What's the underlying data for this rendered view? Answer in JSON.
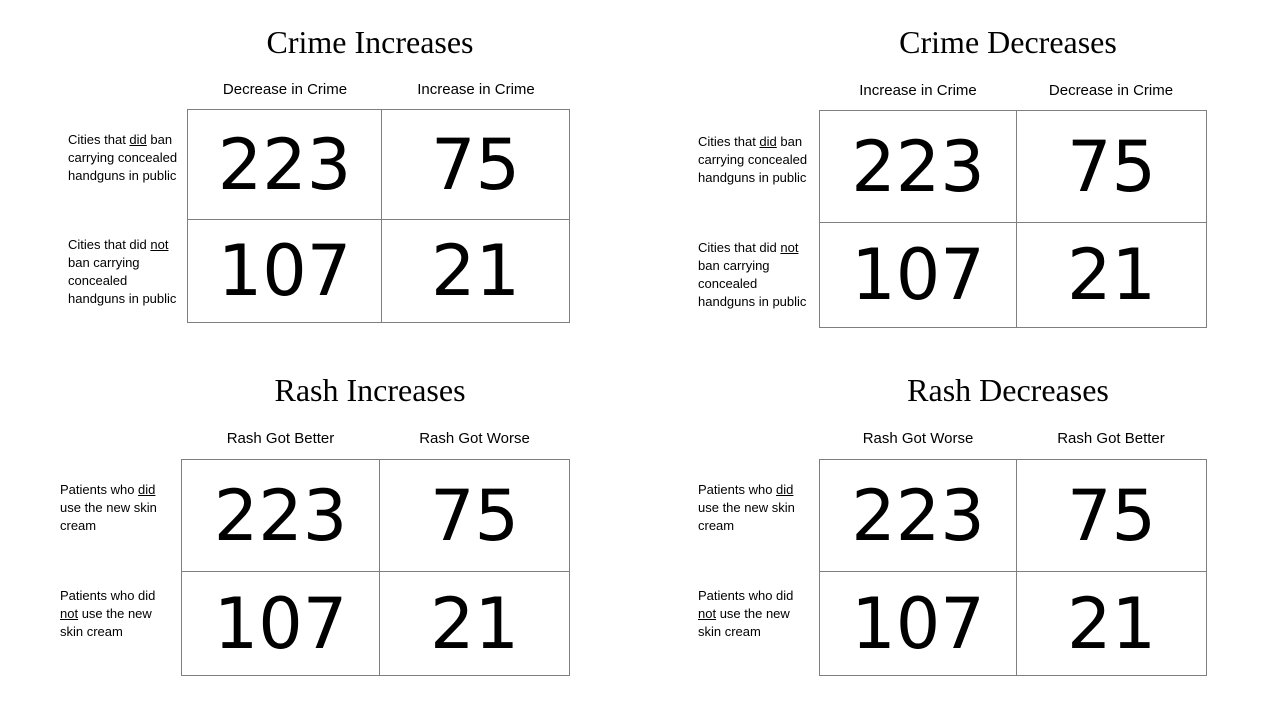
{
  "panels": [
    {
      "title": "Crime Increases",
      "col_headers": [
        "Decrease in Crime",
        "Increase in Crime"
      ],
      "rows": [
        {
          "label_before": "Cities that ",
          "label_emph": "did",
          "label_after": " ban carrying concealed handguns in public"
        },
        {
          "label_before": "Cities that did ",
          "label_emph": "not",
          "label_after": " ban carrying concealed handguns in public"
        }
      ],
      "cells": [
        [
          "223",
          "75"
        ],
        [
          "107",
          "21"
        ]
      ]
    },
    {
      "title": "Crime Decreases",
      "col_headers": [
        "Increase in Crime",
        "Decrease in Crime"
      ],
      "rows": [
        {
          "label_before": "Cities that ",
          "label_emph": "did",
          "label_after": " ban carrying concealed handguns in public"
        },
        {
          "label_before": "Cities that did ",
          "label_emph": "not",
          "label_after": " ban carrying concealed handguns in public"
        }
      ],
      "cells": [
        [
          "223",
          "75"
        ],
        [
          "107",
          "21"
        ]
      ]
    },
    {
      "title": "Rash Increases",
      "col_headers": [
        "Rash Got Better",
        "Rash Got Worse"
      ],
      "rows": [
        {
          "label_before": "Patients who ",
          "label_emph": "did",
          "label_after": " use the new skin cream"
        },
        {
          "label_before": "Patients who did ",
          "label_emph": "not",
          "label_after": " use the new skin cream"
        }
      ],
      "cells": [
        [
          "223",
          "75"
        ],
        [
          "107",
          "21"
        ]
      ]
    },
    {
      "title": "Rash Decreases",
      "col_headers": [
        "Rash Got Worse",
        "Rash Got Better"
      ],
      "rows": [
        {
          "label_before": "Patients who ",
          "label_emph": "did",
          "label_after": " use the new skin cream"
        },
        {
          "label_before": "Patients who did ",
          "label_emph": "not",
          "label_after": " use the new skin cream"
        }
      ],
      "cells": [
        [
          "223",
          "75"
        ],
        [
          "107",
          "21"
        ]
      ]
    }
  ]
}
